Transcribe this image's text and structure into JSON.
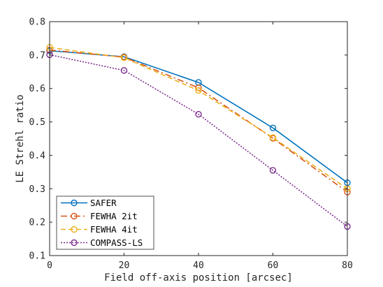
{
  "chart_data": {
    "type": "line",
    "xlabel": "Field off-axis position [arcsec]",
    "ylabel": "LE Strehl ratio",
    "xlim": [
      0,
      80
    ],
    "ylim": [
      0.1,
      0.8
    ],
    "xticks": [
      0,
      20,
      40,
      60,
      80
    ],
    "yticks": [
      0.1,
      0.2,
      0.3,
      0.4,
      0.5,
      0.6,
      0.7,
      0.8
    ],
    "x": [
      0,
      20,
      40,
      60,
      80
    ],
    "grid": false,
    "legend_position": "bottom-left",
    "series": [
      {
        "name": "SAFER",
        "values": [
          0.713,
          0.695,
          0.618,
          0.482,
          0.318
        ],
        "color": "#0072BD",
        "dash": "solid",
        "marker": "circle"
      },
      {
        "name": "FEWHA 2it",
        "values": [
          0.715,
          0.694,
          0.602,
          0.451,
          0.29
        ],
        "color": "#D95319",
        "dash": "dashdot",
        "marker": "circle"
      },
      {
        "name": "FEWHA 4it",
        "values": [
          0.723,
          0.692,
          0.594,
          0.453,
          0.3
        ],
        "color": "#EDB120",
        "dash": "dashed",
        "marker": "circle"
      },
      {
        "name": "COMPASS-LS",
        "values": [
          0.701,
          0.654,
          0.523,
          0.355,
          0.187
        ],
        "color": "#7E2F8E",
        "dash": "dotted",
        "marker": "circle"
      }
    ]
  }
}
